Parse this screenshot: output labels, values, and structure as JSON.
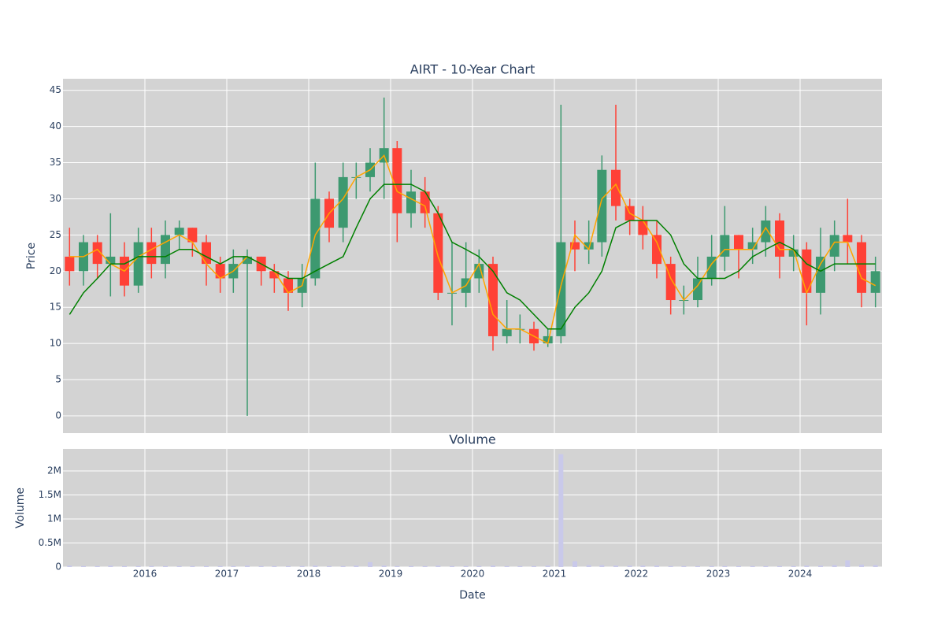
{
  "chart_data": [
    {
      "type": "candlestick",
      "title": "AIRT - 10-Year Chart",
      "y_label": "Price",
      "x": [
        2015.08,
        2015.25,
        2015.42,
        2015.58,
        2015.75,
        2015.92,
        2016.08,
        2016.25,
        2016.42,
        2016.58,
        2016.75,
        2016.92,
        2017.08,
        2017.25,
        2017.42,
        2017.58,
        2017.75,
        2017.92,
        2018.08,
        2018.25,
        2018.42,
        2018.58,
        2018.75,
        2018.92,
        2019.08,
        2019.25,
        2019.42,
        2019.58,
        2019.75,
        2019.92,
        2020.08,
        2020.25,
        2020.42,
        2020.58,
        2020.75,
        2020.92,
        2021.08,
        2021.25,
        2021.42,
        2021.58,
        2021.75,
        2021.92,
        2022.08,
        2022.25,
        2022.42,
        2022.58,
        2022.75,
        2022.92,
        2023.08,
        2023.25,
        2023.42,
        2023.58,
        2023.75,
        2023.92,
        2024.08,
        2024.25,
        2024.42,
        2024.58,
        2024.75,
        2024.92
      ],
      "open": [
        22,
        20,
        24,
        21,
        22,
        18,
        24,
        21,
        25,
        26,
        24,
        21,
        19,
        21,
        22,
        20,
        19,
        17,
        19,
        30,
        26,
        33,
        33,
        35,
        37,
        28,
        31,
        28,
        17,
        17,
        19,
        21,
        11,
        12,
        12,
        10,
        11,
        24,
        23,
        24,
        34,
        29,
        27,
        25,
        21,
        16,
        16,
        19,
        22,
        25,
        23,
        24,
        27,
        22,
        23,
        17,
        22,
        25,
        24,
        17
      ],
      "high": [
        26,
        25,
        25,
        28,
        24,
        26,
        26,
        27,
        27,
        26,
        25,
        22,
        23,
        23,
        22,
        21,
        20,
        21,
        35,
        31,
        35,
        35,
        37,
        44,
        38,
        34,
        33,
        29,
        24,
        24,
        23,
        22,
        16,
        14,
        13,
        12,
        43,
        27,
        27,
        36,
        43,
        30,
        29,
        27,
        22,
        18,
        22,
        25,
        29,
        25,
        26,
        29,
        28,
        25,
        24,
        26,
        27,
        30,
        25,
        22
      ],
      "low": [
        18,
        18,
        19,
        16.5,
        16.5,
        17,
        19,
        19,
        23,
        22,
        18,
        17,
        17,
        0,
        18,
        17,
        14.5,
        15,
        18,
        24,
        24,
        30,
        31,
        30,
        24,
        26,
        26,
        16,
        12.5,
        15,
        17,
        9,
        10,
        10,
        9,
        9.5,
        10,
        20,
        21,
        22,
        27,
        25,
        23,
        19,
        14,
        14,
        15,
        18,
        20,
        19,
        21,
        22,
        19,
        20,
        12.5,
        14,
        20,
        21,
        15,
        15
      ],
      "close": [
        20,
        24,
        21,
        22,
        18,
        24,
        21,
        25,
        26,
        24,
        21,
        19,
        21,
        22,
        20,
        19,
        17,
        19,
        30,
        26,
        33,
        33,
        35,
        37,
        28,
        31,
        28,
        17,
        17,
        19,
        21,
        11,
        12,
        12,
        10,
        11,
        24,
        23,
        24,
        34,
        29,
        27,
        25,
        21,
        16,
        16,
        19,
        22,
        25,
        23,
        24,
        27,
        22,
        23,
        17,
        22,
        25,
        24,
        17,
        20
      ],
      "increasing_color": "#3d9970",
      "decreasing_color": "#ff4136",
      "lines": [
        {
          "color": "#ffa500",
          "values": [
            22,
            22,
            23,
            21,
            20,
            22,
            23,
            24,
            25,
            24,
            21,
            19,
            20,
            22,
            21,
            20,
            17,
            18,
            25,
            28,
            30,
            33,
            34,
            36,
            31,
            30,
            29,
            22,
            17,
            18,
            21,
            14,
            12,
            12,
            11,
            10,
            18,
            25,
            23,
            30,
            32,
            28,
            27,
            24,
            19,
            16,
            18,
            21,
            23,
            23,
            23,
            26,
            23,
            23,
            17,
            21,
            24,
            24,
            19,
            18
          ]
        },
        {
          "color": "#008000",
          "values": [
            14,
            17,
            19,
            21,
            21,
            22,
            22,
            22,
            23,
            23,
            22,
            21,
            22,
            22,
            21,
            20,
            19,
            19,
            20,
            21,
            22,
            26,
            30,
            32,
            32,
            32,
            31,
            28,
            24,
            23,
            22,
            20,
            17,
            16,
            14,
            12,
            12,
            15,
            17,
            20,
            26,
            27,
            27,
            27,
            25,
            21,
            19,
            19,
            19,
            20,
            22,
            23,
            24,
            23,
            21,
            20,
            21,
            21,
            21,
            21
          ]
        }
      ],
      "xlim": [
        2015,
        2025
      ],
      "xticks": [
        2016,
        2017,
        2018,
        2019,
        2020,
        2021,
        2022,
        2023,
        2024
      ],
      "ylim": [
        -2.4,
        46.6
      ],
      "yticks": [
        0,
        5,
        10,
        15,
        20,
        25,
        30,
        35,
        40,
        45
      ],
      "grid": true
    },
    {
      "type": "bar",
      "title": "Volume",
      "y_label": "Volume",
      "x_label": "Date",
      "x": [
        2015.08,
        2015.25,
        2015.42,
        2015.58,
        2015.75,
        2015.92,
        2016.08,
        2016.25,
        2016.42,
        2016.58,
        2016.75,
        2016.92,
        2017.08,
        2017.25,
        2017.42,
        2017.58,
        2017.75,
        2017.92,
        2018.08,
        2018.25,
        2018.42,
        2018.58,
        2018.75,
        2018.92,
        2019.08,
        2019.25,
        2019.42,
        2019.58,
        2019.75,
        2019.92,
        2020.08,
        2020.25,
        2020.42,
        2020.58,
        2020.75,
        2020.92,
        2021.08,
        2021.25,
        2021.42,
        2021.58,
        2021.75,
        2021.92,
        2022.08,
        2022.25,
        2022.42,
        2022.58,
        2022.75,
        2022.92,
        2023.08,
        2023.25,
        2023.42,
        2023.58,
        2023.75,
        2023.92,
        2024.08,
        2024.25,
        2024.42,
        2024.58,
        2024.75,
        2024.92
      ],
      "values": [
        30000,
        20000,
        20000,
        30000,
        20000,
        20000,
        20000,
        20000,
        20000,
        20000,
        20000,
        20000,
        20000,
        30000,
        20000,
        20000,
        20000,
        20000,
        30000,
        20000,
        20000,
        30000,
        100000,
        30000,
        20000,
        20000,
        20000,
        30000,
        20000,
        20000,
        20000,
        30000,
        20000,
        20000,
        20000,
        30000,
        2350000,
        120000,
        40000,
        40000,
        30000,
        30000,
        30000,
        30000,
        20000,
        20000,
        20000,
        20000,
        20000,
        20000,
        20000,
        20000,
        20000,
        20000,
        30000,
        30000,
        40000,
        140000,
        50000,
        40000
      ],
      "color": "#c9c9ea",
      "xlim": [
        2015,
        2025
      ],
      "xticks": [
        2016,
        2017,
        2018,
        2019,
        2020,
        2021,
        2022,
        2023,
        2024
      ],
      "ylim": [
        0,
        2460000
      ],
      "yticks": [
        0,
        {
          "value": 500000,
          "label": "0.5M"
        },
        {
          "value": 1000000,
          "label": "1M"
        },
        {
          "value": 1500000,
          "label": "1.5M"
        },
        {
          "value": 2000000,
          "label": "2M"
        }
      ],
      "grid": true
    }
  ]
}
